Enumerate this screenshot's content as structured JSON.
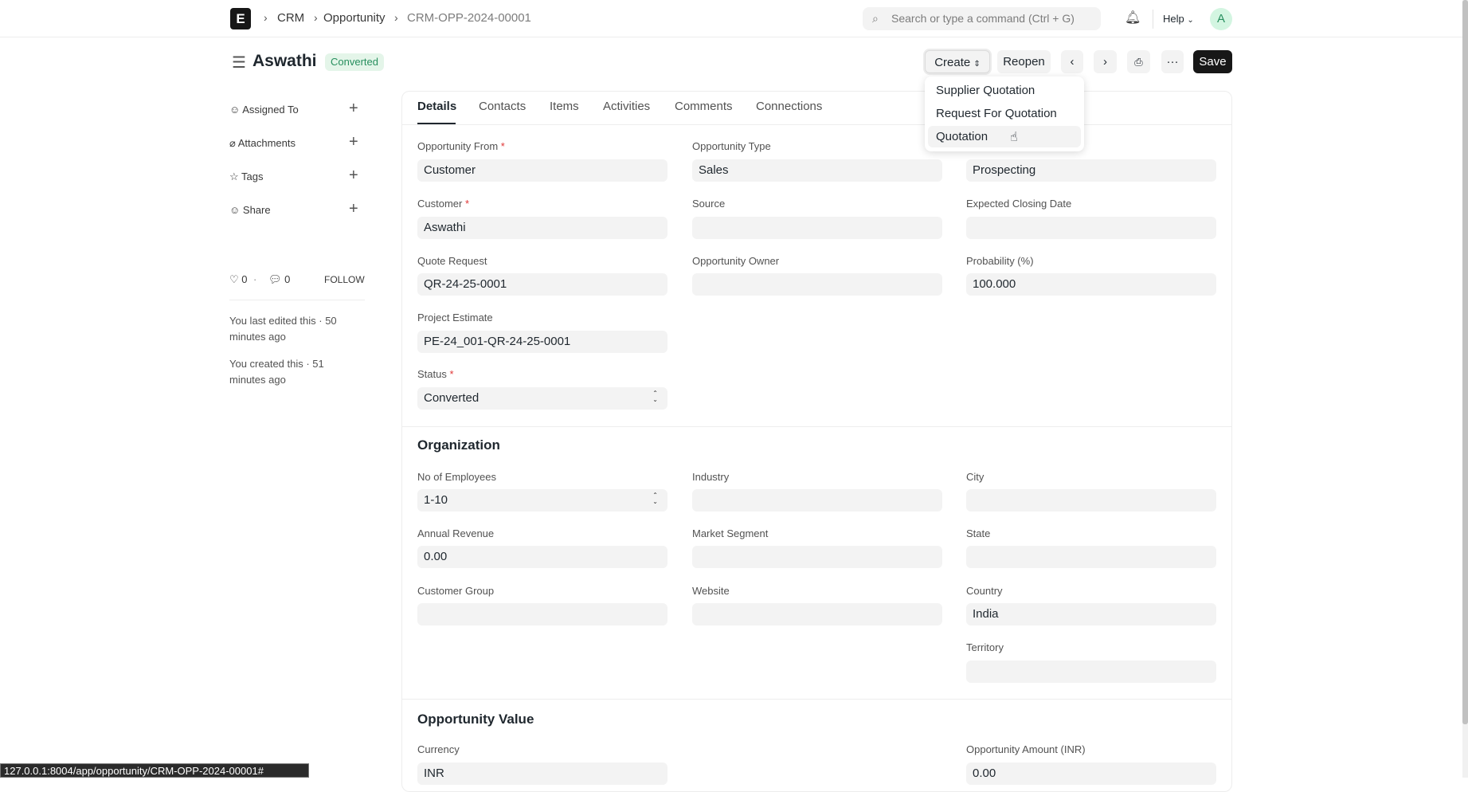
{
  "navbar": {
    "logo": "E",
    "breadcrumbs": [
      "CRM",
      "Opportunity",
      "CRM-OPP-2024-00001"
    ],
    "search_placeholder": "Search or type a command (Ctrl + G)",
    "help": "Help",
    "avatar": "A"
  },
  "header": {
    "title": "Aswathi",
    "status": "Converted",
    "create": "Create",
    "reopen": "Reopen",
    "save": "Save",
    "more": "···"
  },
  "create_menu": [
    "Supplier Quotation",
    "Request For Quotation",
    "Quotation"
  ],
  "sidebar": {
    "items": [
      "Assigned To",
      "Attachments",
      "Tags",
      "Share"
    ],
    "likes": "0",
    "comments": "0",
    "follow": "FOLLOW",
    "edited": "You last edited this · 50 minutes ago",
    "created": "You created this · 51 minutes ago"
  },
  "tabs": [
    "Details",
    "Contacts",
    "Items",
    "Activities",
    "Comments",
    "Connections"
  ],
  "details": {
    "opportunity_from": {
      "label": "Opportunity From",
      "value": "Customer"
    },
    "opportunity_type": {
      "label": "Opportunity Type",
      "value": "Sales"
    },
    "sales_stage": {
      "value": "Prospecting"
    },
    "customer": {
      "label": "Customer",
      "value": "Aswathi"
    },
    "source": {
      "label": "Source",
      "value": ""
    },
    "closing_date": {
      "label": "Expected Closing Date",
      "value": ""
    },
    "quote_request": {
      "label": "Quote Request",
      "value": "QR-24-25-0001"
    },
    "owner": {
      "label": "Opportunity Owner",
      "value": ""
    },
    "probability": {
      "label": "Probability (%)",
      "value": "100.000"
    },
    "project_estimate": {
      "label": "Project Estimate",
      "value": "PE-24_001-QR-24-25-0001"
    },
    "status": {
      "label": "Status",
      "value": "Converted"
    }
  },
  "organization": {
    "heading": "Organization",
    "employees": {
      "label": "No of Employees",
      "value": "1-10"
    },
    "industry": {
      "label": "Industry",
      "value": ""
    },
    "city": {
      "label": "City",
      "value": ""
    },
    "revenue": {
      "label": "Annual Revenue",
      "value": "0.00"
    },
    "segment": {
      "label": "Market Segment",
      "value": ""
    },
    "state": {
      "label": "State",
      "value": ""
    },
    "customer_group": {
      "label": "Customer Group",
      "value": ""
    },
    "website": {
      "label": "Website",
      "value": ""
    },
    "country": {
      "label": "Country",
      "value": "India"
    },
    "territory": {
      "label": "Territory",
      "value": ""
    }
  },
  "value_section": {
    "heading": "Opportunity Value",
    "currency": {
      "label": "Currency",
      "value": "INR"
    },
    "amount": {
      "label": "Opportunity Amount (INR)",
      "value": "0.00"
    }
  },
  "status_url": "127.0.0.1:8004/app/opportunity/CRM-OPP-2024-00001#",
  "colors": {
    "badge_bg": "#e4f5e9",
    "badge_text": "#278f5e",
    "save_bg": "#171717"
  }
}
